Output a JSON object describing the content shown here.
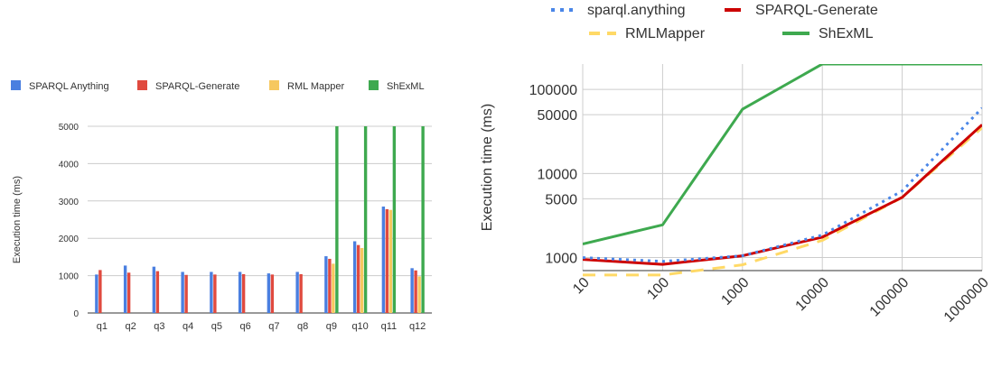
{
  "chart_data": [
    {
      "type": "bar",
      "ylabel": "Execution time (ms)",
      "categories": [
        "q1",
        "q2",
        "q3",
        "q4",
        "q5",
        "q6",
        "q7",
        "q8",
        "q9",
        "q10",
        "q11",
        "q12"
      ],
      "ylim": [
        0,
        5000
      ],
      "yticks": [
        0,
        1000,
        2000,
        3000,
        4000,
        5000
      ],
      "grid": true,
      "legend_position": "top",
      "series": [
        {
          "name": "SPARQL Anything",
          "color": "#4a7fe0",
          "values": [
            1030,
            1270,
            1240,
            1100,
            1100,
            1100,
            1060,
            1100,
            1520,
            1920,
            2850,
            1200
          ]
        },
        {
          "name": "SPARQL-Generate",
          "color": "#e04a3f",
          "values": [
            1150,
            1080,
            1120,
            1020,
            1030,
            1040,
            1030,
            1040,
            1450,
            1820,
            2780,
            1140
          ]
        },
        {
          "name": "RML Mapper",
          "color": "#f6c85f",
          "values": [
            null,
            null,
            null,
            null,
            null,
            null,
            null,
            null,
            1320,
            1740,
            2760,
            980
          ]
        },
        {
          "name": "ShExML",
          "color": "#3ea94f",
          "values": [
            null,
            null,
            null,
            null,
            null,
            null,
            null,
            null,
            5000,
            5000,
            5000,
            5000
          ]
        }
      ]
    },
    {
      "type": "line",
      "ylabel": "Execution time (ms)",
      "x": [
        10,
        100,
        1000,
        10000,
        100000,
        1000000
      ],
      "xticks": [
        "10",
        "100",
        "1000",
        "10000",
        "100000",
        "1000000"
      ],
      "yscale": "log",
      "ylim": [
        700,
        200000
      ],
      "yticks": [
        1000,
        5000,
        10000,
        50000,
        100000
      ],
      "grid": true,
      "legend_position": "top",
      "series": [
        {
          "name": "sparql.anything",
          "color": "#4a86e8",
          "style": "dotted",
          "values": [
            1000,
            900,
            1050,
            1850,
            6200,
            60000
          ]
        },
        {
          "name": "SPARQL-Generate",
          "color": "#cc0000",
          "style": "solid",
          "values": [
            950,
            830,
            1050,
            1750,
            5200,
            38000
          ]
        },
        {
          "name": "RMLMapper",
          "color": "#ffd966",
          "style": "dashed",
          "values": [
            620,
            620,
            820,
            1600,
            5200,
            35000
          ]
        },
        {
          "name": "ShExML",
          "color": "#3ea94f",
          "style": "solid",
          "values": [
            1450,
            2450,
            58000,
            200000,
            200000,
            200000
          ]
        }
      ]
    }
  ]
}
